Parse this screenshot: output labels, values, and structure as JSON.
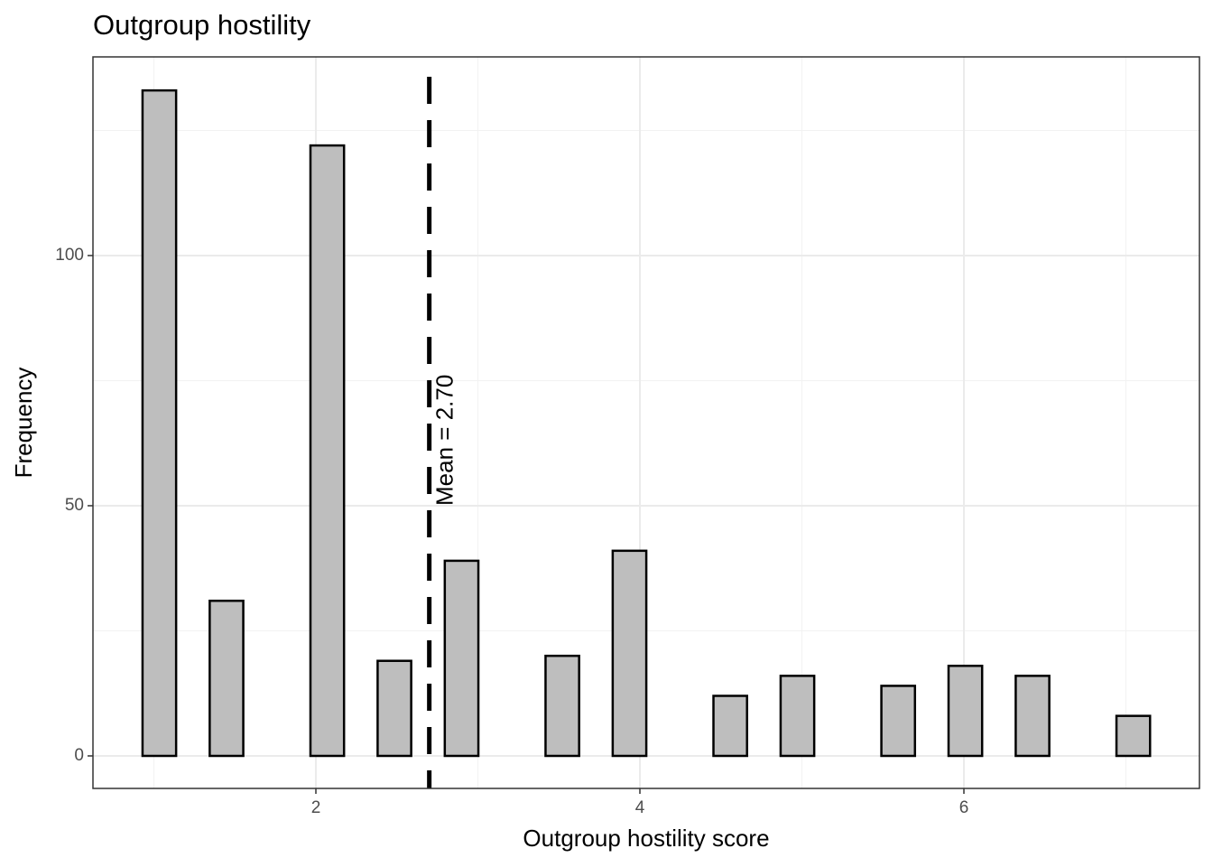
{
  "chart_data": {
    "type": "histogram",
    "title": "Outgroup hostility",
    "x_label": "Outgroup hostility score",
    "y_label": "Frequency",
    "bins": [
      0.93,
      1.1373,
      1.3446,
      1.5519,
      1.7592,
      1.9665,
      2.1738,
      2.3811,
      2.5884,
      2.7957,
      3.003,
      3.2103,
      3.4176,
      3.6249,
      3.8322,
      4.0395,
      4.2468,
      4.4541,
      4.6614,
      4.8687,
      5.076,
      5.2833,
      5.4906,
      5.6979,
      5.9052,
      6.1125,
      6.3198,
      6.5271,
      6.7344,
      6.9417,
      7.149
    ],
    "values": [
      133,
      0,
      31,
      0,
      0,
      122,
      0,
      19,
      0,
      39,
      0,
      0,
      20,
      0,
      41,
      0,
      0,
      12,
      0,
      16,
      0,
      0,
      14,
      0,
      18,
      0,
      16,
      0,
      0,
      8
    ],
    "color": "#bebebe",
    "xlim": [
      0.624,
      7.454
    ],
    "ylim": [
      -6.5,
      139.7
    ],
    "xticks": [
      2,
      4,
      6
    ],
    "yticks": [
      0,
      50,
      100
    ],
    "x_minor_ticks": [
      1,
      3,
      5,
      7
    ],
    "y_minor_ticks": [
      25,
      75,
      125
    ],
    "grid": true,
    "mean_line": {
      "value": 2.7,
      "label": "Mean = 2.70"
    }
  }
}
